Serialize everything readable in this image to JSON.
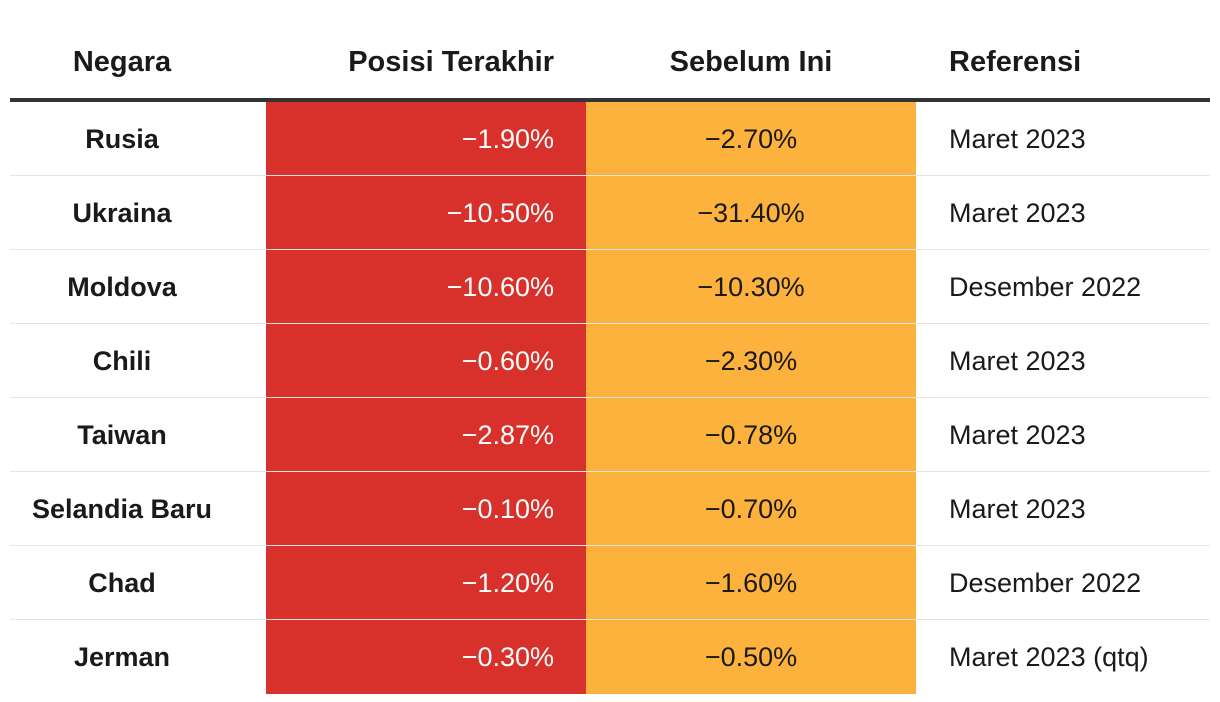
{
  "chart_data": {
    "type": "table",
    "columns": [
      "Negara",
      "Posisi Terakhir",
      "Sebelum Ini",
      "Referensi"
    ],
    "rows": [
      {
        "country": "Rusia",
        "latest": "−1.90%",
        "previous": "−2.70%",
        "reference": "Maret 2023"
      },
      {
        "country": "Ukraina",
        "latest": "−10.50%",
        "previous": "−31.40%",
        "reference": "Maret 2023"
      },
      {
        "country": "Moldova",
        "latest": "−10.60%",
        "previous": "−10.30%",
        "reference": "Desember 2022"
      },
      {
        "country": "Chili",
        "latest": "−0.60%",
        "previous": "−2.30%",
        "reference": "Maret 2023"
      },
      {
        "country": "Taiwan",
        "latest": "−2.87%",
        "previous": "−0.78%",
        "reference": "Maret 2023"
      },
      {
        "country": "Selandia Baru",
        "latest": "−0.10%",
        "previous": "−0.70%",
        "reference": "Maret 2023"
      },
      {
        "country": "Chad",
        "latest": "−1.20%",
        "previous": "−1.60%",
        "reference": "Desember 2022"
      },
      {
        "country": "Jerman",
        "latest": "−0.30%",
        "previous": "−0.50%",
        "reference": "Maret 2023 (qtq)"
      }
    ],
    "values_latest": [
      -1.9,
      -10.5,
      -10.6,
      -0.6,
      -2.87,
      -0.1,
      -1.2,
      -0.3
    ],
    "values_previous": [
      -2.7,
      -31.4,
      -10.3,
      -2.3,
      -0.78,
      -0.7,
      -1.6,
      -0.5
    ]
  },
  "colors": {
    "latest_column": "#d8302a",
    "previous_column": "#fcb23c",
    "header_rule": "#333333",
    "row_separator": "#e4e4e4"
  }
}
